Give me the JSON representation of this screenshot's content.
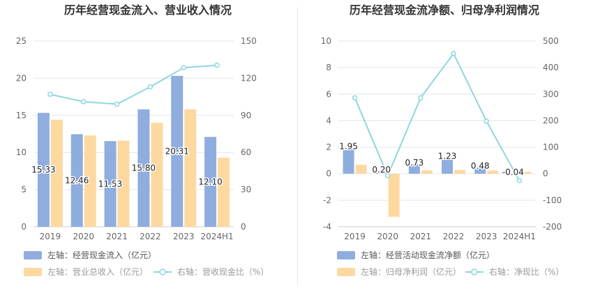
{
  "chart_data": [
    {
      "type": "bar",
      "title": "历年经营现金流入、营业收入情况",
      "categories": [
        "2019",
        "2020",
        "2021",
        "2022",
        "2023",
        "2024H1"
      ],
      "left_axis": {
        "ylim": [
          0,
          25
        ],
        "ticks": [
          "0",
          "5",
          "10",
          "15",
          "20",
          "25"
        ]
      },
      "right_axis": {
        "ylim": [
          0,
          150
        ],
        "ticks": [
          "0",
          "30",
          "60",
          "90",
          "120",
          "150"
        ]
      },
      "grid": true,
      "series": [
        {
          "name": "左轴：经营现金流入（亿元）",
          "kind": "bar",
          "axis": "left",
          "color": "#8fadde",
          "values": [
            15.33,
            12.46,
            11.53,
            15.8,
            20.31,
            12.1
          ],
          "labels": [
            "15.33",
            "12.46",
            "11.53",
            "15.80",
            "20.31",
            "12.10"
          ]
        },
        {
          "name": "左轴：营业总收入（亿元）",
          "kind": "bar",
          "axis": "left",
          "color": "#fdd9a0",
          "values": [
            14.4,
            12.3,
            11.6,
            14.0,
            15.8,
            9.3
          ]
        },
        {
          "name": "右轴：营收现金比（%）",
          "kind": "line",
          "axis": "right",
          "color": "#8fd6df",
          "values": [
            107,
            101,
            99,
            113,
            128.5,
            130.5
          ]
        }
      ],
      "legend_position": "bottom"
    },
    {
      "type": "bar",
      "title": "历年经营现金流净额、归母净利润情况",
      "categories": [
        "2019",
        "2020",
        "2021",
        "2022",
        "2023",
        "2024H1"
      ],
      "left_axis": {
        "ylim": [
          -4,
          10
        ],
        "ticks": [
          "-4",
          "-2",
          "0",
          "2",
          "4",
          "6",
          "8",
          "10"
        ]
      },
      "right_axis": {
        "ylim": [
          -200,
          500
        ],
        "ticks": [
          "-200",
          "-100",
          "0",
          "100",
          "200",
          "300",
          "400",
          "500"
        ]
      },
      "grid": true,
      "series": [
        {
          "name": "左轴：经营活动现金流净额（亿元）",
          "kind": "bar",
          "axis": "left",
          "color": "#8fadde",
          "values": [
            1.95,
            0.2,
            0.73,
            1.23,
            0.48,
            -0.04
          ],
          "labels": [
            "1.95",
            "0.20",
            "0.73",
            "1.23",
            "0.48",
            "-0.04"
          ]
        },
        {
          "name": "左轴：归母净利润（亿元）",
          "kind": "bar",
          "axis": "left",
          "color": "#fdd9a0",
          "values": [
            0.68,
            -3.25,
            0.25,
            0.28,
            0.24,
            0.15
          ]
        },
        {
          "name": "右轴：净现比（%）",
          "kind": "line",
          "axis": "right",
          "color": "#8fd6df",
          "values": [
            286,
            -7,
            286,
            453,
            198,
            -26
          ]
        }
      ],
      "legend_position": "bottom"
    }
  ]
}
